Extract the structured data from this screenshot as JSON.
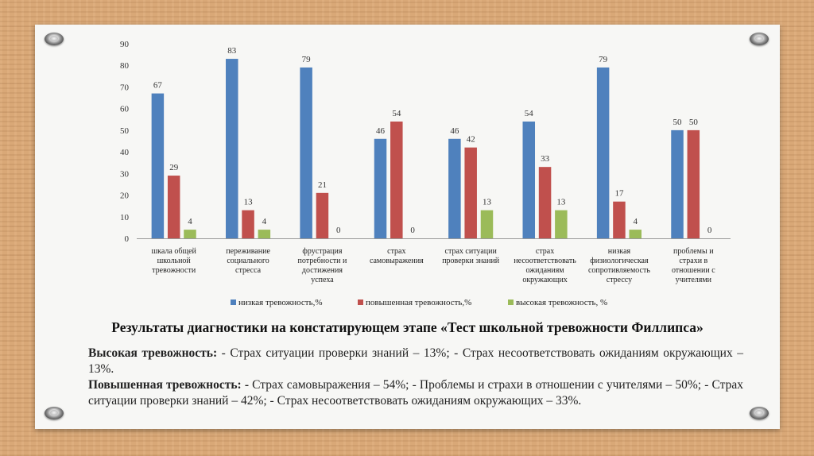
{
  "chart_data": {
    "type": "bar",
    "ylim": [
      0,
      90
    ],
    "yticks": [
      0,
      10,
      20,
      30,
      40,
      50,
      60,
      70,
      80,
      90
    ],
    "categories": [
      [
        "шкала общей",
        "школьной",
        "тревожности"
      ],
      [
        "переживание",
        "социального",
        "стресса"
      ],
      [
        "фрустрация",
        "потребности и",
        "достижения",
        "успеха"
      ],
      [
        "страх",
        "самовыражения"
      ],
      [
        "страх ситуации",
        "проверки знаний"
      ],
      [
        "страх",
        "несоответствовать",
        "ожиданиям",
        "окружающих"
      ],
      [
        "низкая",
        "физиологическая",
        "сопротивляемость",
        "стрессу"
      ],
      [
        "проблемы и",
        "страхи в",
        "отношении с",
        "учителями"
      ]
    ],
    "series": [
      {
        "name": "низкая тревожность,%",
        "color": "#4f81bd",
        "values": [
          67,
          83,
          79,
          46,
          46,
          54,
          79,
          50
        ]
      },
      {
        "name": "повышенная тревожность,%",
        "color": "#c0504d",
        "values": [
          29,
          13,
          21,
          54,
          42,
          33,
          17,
          50
        ]
      },
      {
        "name": "высокая тревожность, %",
        "color": "#9bbb59",
        "values": [
          4,
          4,
          0,
          0,
          13,
          13,
          4,
          0
        ]
      }
    ],
    "legend_position": "bottom",
    "grid": false
  },
  "caption": "Результаты диагностики на констатирующем этапе «Тест школьной тревожности Филлипса»",
  "paragraphs": {
    "high_label": "Высокая тревожность:",
    "high_text": " - Страх ситуации проверки знаний – 13%; - Страх несоответствовать ожиданиям окружающих – 13%.",
    "elevated_label": "Повышенная тревожность: -",
    "elevated_text": " Страх самовыражения – 54%; - Проблемы и страхи в отношении с учителями – 50%; - Страх ситуации проверки знаний – 42%; - Страх несоответствовать ожиданиям окружающих – 33%."
  }
}
